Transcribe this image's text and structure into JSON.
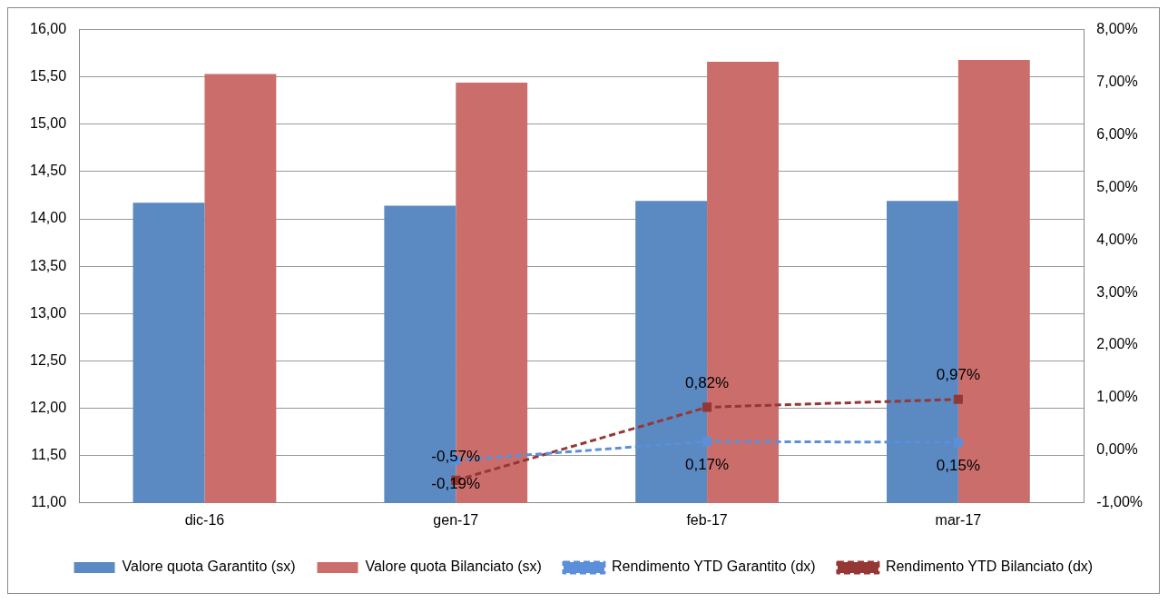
{
  "chart_data": {
    "type": "bar",
    "categories": [
      "dic-16",
      "gen-17",
      "feb-17",
      "mar-17"
    ],
    "series": [
      {
        "name": "Valore quota Garantito (sx)",
        "color": "#5b89c2",
        "values": [
          14.17,
          14.14,
          14.19,
          14.19
        ]
      },
      {
        "name": "Valore quota Bilanciato (sx)",
        "color": "#cb6e6b",
        "values": [
          15.53,
          15.44,
          15.66,
          15.68
        ]
      },
      {
        "name": "Rendimento YTD Garantito (dx)",
        "type": "line",
        "axis": "y2",
        "color": "#5b8fd9",
        "line_style": "dashed",
        "marker": "square",
        "values": [
          null,
          -0.19,
          0.17,
          0.15
        ],
        "value_labels": [
          null,
          "-0,19%",
          "0,17%",
          "0,15%"
        ]
      },
      {
        "name": "Rendimento YTD Bilanciato (dx)",
        "type": "line",
        "axis": "y2",
        "color": "#953735",
        "line_style": "dashed",
        "marker": "square",
        "values": [
          null,
          -0.57,
          0.82,
          0.97
        ],
        "value_labels": [
          null,
          "-0,57%",
          "0,82%",
          "0,97%"
        ]
      }
    ],
    "ylim": [
      11,
      16
    ],
    "yticks": [
      {
        "value": 11,
        "label": "11,00"
      },
      {
        "value": 11.5,
        "label": "11,50"
      },
      {
        "value": 12,
        "label": "12,00"
      },
      {
        "value": 12.5,
        "label": "12,50"
      },
      {
        "value": 13,
        "label": "13,00"
      },
      {
        "value": 13.5,
        "label": "13,50"
      },
      {
        "value": 14,
        "label": "14,00"
      },
      {
        "value": 14.5,
        "label": "14,50"
      },
      {
        "value": 15,
        "label": "15,00"
      },
      {
        "value": 15.5,
        "label": "15,50"
      },
      {
        "value": 16,
        "label": "16,00"
      }
    ],
    "y2lim": [
      -1,
      8
    ],
    "y2ticks": [
      {
        "value": -1,
        "label": "-1,00%"
      },
      {
        "value": 0,
        "label": "0,00%"
      },
      {
        "value": 1,
        "label": "1,00%"
      },
      {
        "value": 2,
        "label": "2,00%"
      },
      {
        "value": 3,
        "label": "3,00%"
      },
      {
        "value": 4,
        "label": "4,00%"
      },
      {
        "value": 5,
        "label": "5,00%"
      },
      {
        "value": 6,
        "label": "6,00%"
      },
      {
        "value": 7,
        "label": "7,00%"
      },
      {
        "value": 8,
        "label": "8,00%"
      }
    ],
    "grid": "y",
    "legend": "bottom"
  }
}
